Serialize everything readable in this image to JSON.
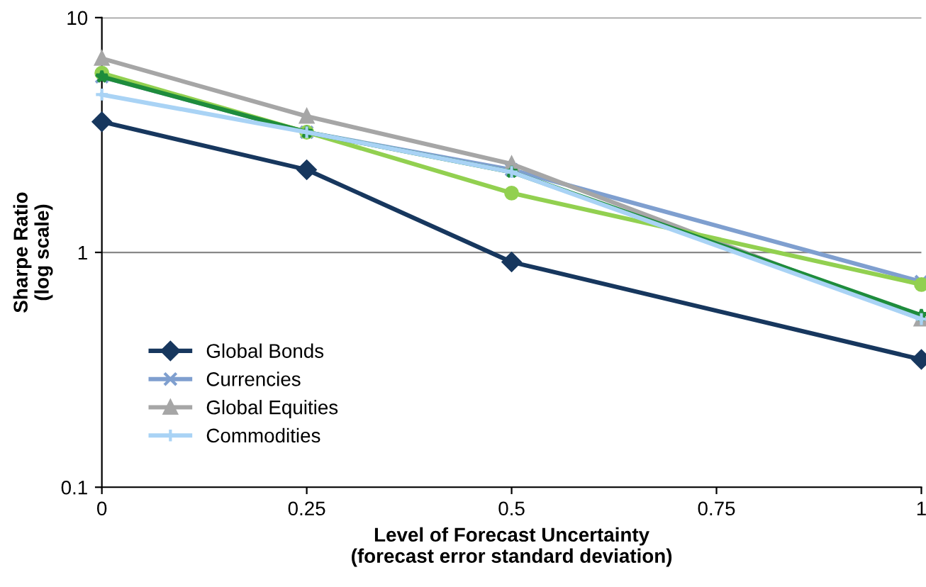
{
  "chart_data": {
    "type": "line",
    "xlabel": "Level of Forecast Uncertainty\n(forecast error standard deviation)",
    "ylabel": "Sharpe Ratio\n(log scale)",
    "x": [
      0,
      0.25,
      0.5,
      1
    ],
    "series": [
      {
        "name": "Global Bonds",
        "color": "#17375e",
        "marker": "diamond",
        "values": [
          3.6,
          2.25,
          0.91,
          0.35
        ]
      },
      {
        "name": "Currencies",
        "color": "#7f9fcf",
        "marker": "cross",
        "values": [
          5.6,
          3.25,
          2.25,
          0.75
        ]
      },
      {
        "name": "Global Equities",
        "color": "#a6a6a6",
        "marker": "triangle",
        "values": [
          6.7,
          3.8,
          2.38,
          0.52
        ]
      },
      {
        "color": "#92d050",
        "marker": "circle",
        "values": [
          5.8,
          3.25,
          1.79,
          0.73
        ]
      },
      {
        "color": "#1e8c3c",
        "marker": "star",
        "values": [
          5.6,
          3.25,
          2.2,
          0.54
        ]
      },
      {
        "name": "Commodities",
        "color": "#a9d3f5",
        "marker": "plus",
        "values": [
          4.7,
          3.25,
          2.2,
          0.52
        ]
      }
    ],
    "log": "y",
    "xlim": [
      0,
      1
    ],
    "xticks": [
      0,
      0.25,
      0.5,
      0.75,
      1
    ],
    "ylim": [
      0.1,
      10
    ],
    "yticks": [
      0.1,
      1,
      10
    ],
    "grid": "y",
    "legend": "bottom left",
    "line_style": "solid"
  }
}
